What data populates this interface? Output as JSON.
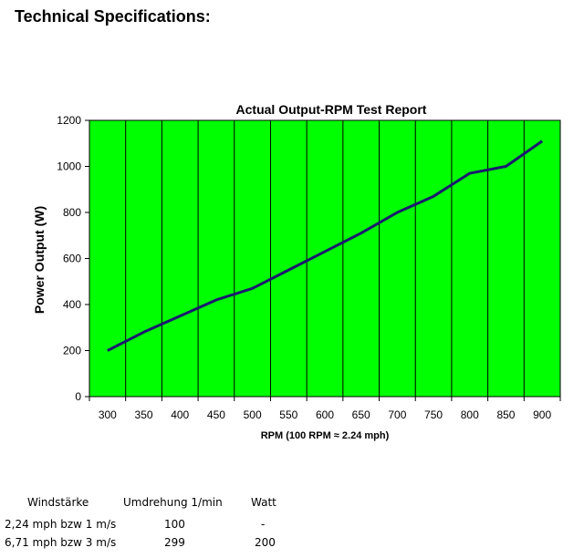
{
  "page": {
    "heading": "Technical Specifications:"
  },
  "chart_data": {
    "type": "line",
    "title": "Actual Output-RPM Test Report",
    "xlabel": "RPM (100 RPM ≈ 2.24 mph)",
    "ylabel": "Power Output (W)",
    "x": [
      300,
      350,
      400,
      450,
      500,
      550,
      600,
      650,
      700,
      750,
      800,
      850,
      900
    ],
    "series": [
      {
        "values": [
          200,
          280,
          350,
          420,
          470,
          550,
          630,
          710,
          800,
          870,
          970,
          1000,
          1110
        ]
      }
    ],
    "xlim": [
      300,
      900
    ],
    "ylim": [
      0,
      1200
    ],
    "yticks": [
      0,
      200,
      400,
      600,
      800,
      1000,
      1200
    ],
    "grid": "vertical",
    "colors": {
      "plot_background": "#00ff00",
      "line": "#1a1a6e",
      "grid": "#000000"
    }
  },
  "table": {
    "headers": [
      "Windstärke",
      "Umdrehung 1/min",
      "Watt"
    ],
    "rows": [
      [
        "2,24 mph bzw 1 m/s",
        "100",
        "-"
      ],
      [
        "6,71 mph bzw 3 m/s",
        "299",
        "200"
      ]
    ]
  }
}
